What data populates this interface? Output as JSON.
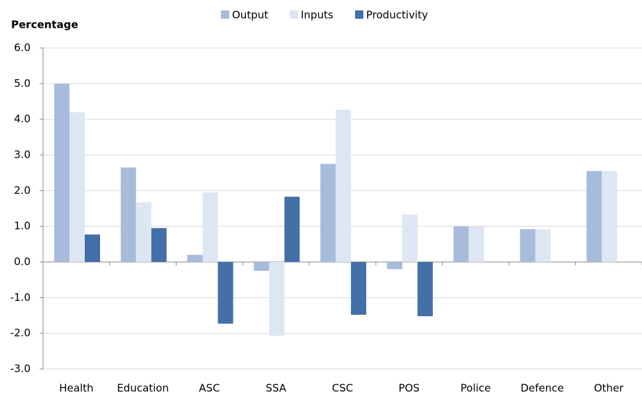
{
  "chart_data": {
    "type": "bar",
    "y_label": "Percentage",
    "categories": [
      "Health",
      "Education",
      "ASC",
      "SSA",
      "CSC",
      "POS",
      "Police",
      "Defence",
      "Other"
    ],
    "series": [
      {
        "name": "Output",
        "color": "#a7bcdb",
        "values": [
          5.0,
          2.65,
          0.2,
          -0.25,
          2.75,
          -0.2,
          1.0,
          0.92,
          2.55
        ]
      },
      {
        "name": "Inputs",
        "color": "#dde6f2",
        "values": [
          4.2,
          1.67,
          1.95,
          -2.07,
          4.27,
          1.33,
          1.0,
          0.92,
          2.55
        ]
      },
      {
        "name": "Productivity",
        "color": "#4470a8",
        "values": [
          0.77,
          0.95,
          -1.73,
          1.83,
          -1.48,
          -1.52,
          0,
          0,
          0
        ]
      }
    ],
    "ylim": [
      -3,
      6
    ],
    "yticks": [
      {
        "value": -3,
        "label": "-3.0"
      },
      {
        "value": -2,
        "label": "-2.0"
      },
      {
        "value": -1,
        "label": "-1.0"
      },
      {
        "value": 0,
        "label": "0.0"
      },
      {
        "value": 1,
        "label": "1.0"
      },
      {
        "value": 2,
        "label": "2.0"
      },
      {
        "value": 3,
        "label": "3.0"
      },
      {
        "value": 4,
        "label": "4.0"
      },
      {
        "value": 5,
        "label": "5.0"
      },
      {
        "value": 6,
        "label": "6.0"
      }
    ],
    "grid": true
  }
}
